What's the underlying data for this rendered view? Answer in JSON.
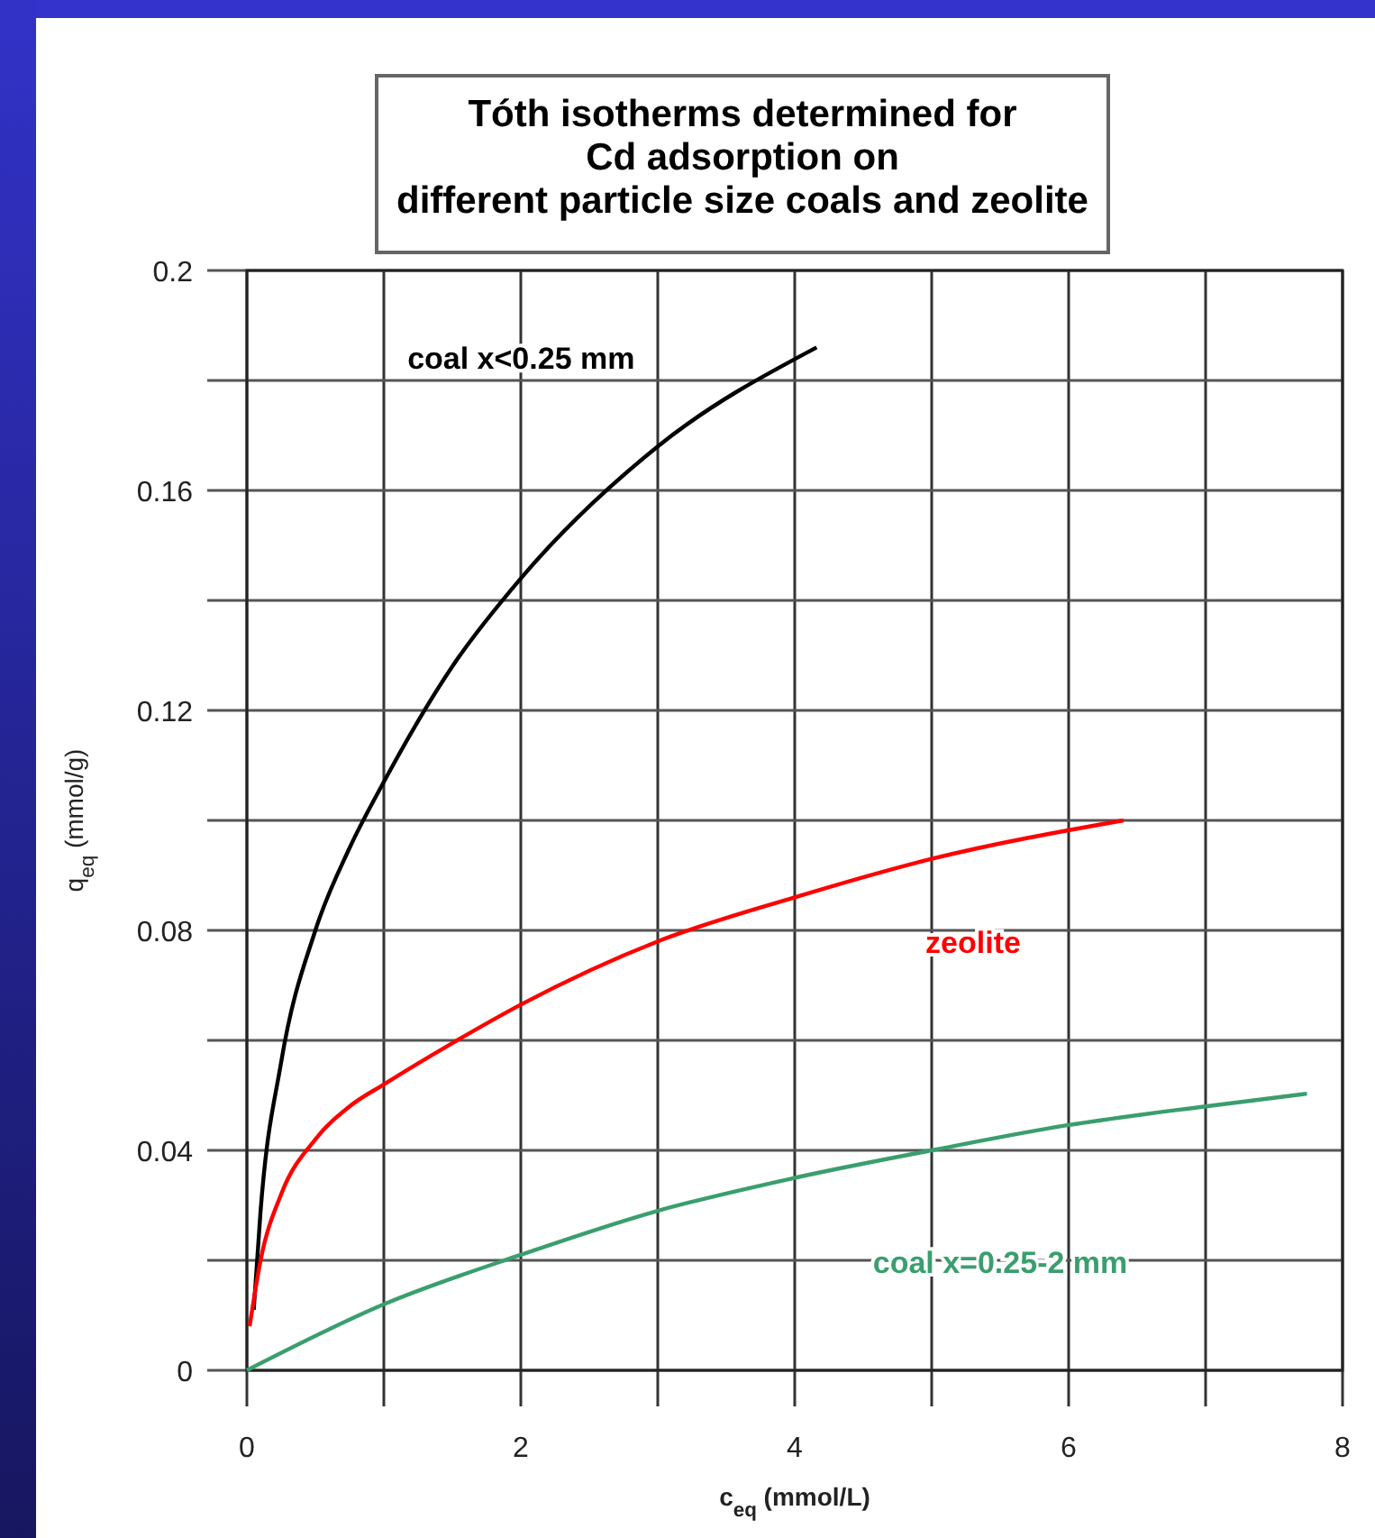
{
  "chart_data": {
    "type": "line",
    "title": "Tóth isotherms determined for\nCd adsorption on\ndifferent particle size coals and zeolite",
    "xlabel": "c$_{eq}$ (mmol/L)",
    "ylabel": "q$_{eq}$ (mmol/g)",
    "xlim": [
      0,
      8
    ],
    "ylim": [
      0,
      0.2
    ],
    "xticks": [
      0,
      {
        "value": 1,
        "label": null
      },
      2,
      {
        "value": 3,
        "label": null
      },
      4,
      {
        "value": 5,
        "label": null
      },
      6,
      {
        "value": 7,
        "label": null
      },
      8
    ],
    "yticks": [
      0,
      {
        "value": 0.02,
        "label": null
      },
      0.04,
      {
        "value": 0.06,
        "label": null
      },
      0.08,
      {
        "value": 0.1,
        "label": null
      },
      0.12,
      {
        "value": 0.14,
        "label": null
      },
      0.16,
      {
        "value": 0.18,
        "label": null
      },
      0.2
    ],
    "grid": true,
    "marker": "none",
    "line_style": "solid",
    "series": [
      {
        "name": "coal x<0.25 mm",
        "color": "#000000",
        "x": [
          0.05,
          0.1,
          0.25,
          0.5,
          0.75,
          1,
          1.5,
          2,
          3,
          4.16
        ],
        "values": [
          0.011,
          0.029,
          0.056,
          0.08,
          0.095,
          0.107,
          0.128,
          0.144,
          0.168,
          0.186
        ]
      },
      {
        "name": "zeolite",
        "color": "#ff0000",
        "x": [
          0.02,
          0.1,
          0.25,
          0.5,
          0.75,
          1,
          1.5,
          2,
          3,
          4,
          5,
          6.4
        ],
        "values": [
          0.008,
          0.02,
          0.032,
          0.042,
          0.048,
          0.052,
          0.0595,
          0.0665,
          0.078,
          0.086,
          0.093,
          0.1
        ]
      },
      {
        "name": "coal x=0.25-2 mm",
        "color": "#3a9e6e",
        "x": [
          0,
          1,
          2,
          3,
          4,
          5,
          6,
          7,
          7.74
        ],
        "values": [
          0,
          0.012,
          0.021,
          0.029,
          0.035,
          0.04,
          0.0446,
          0.048,
          0.0503
        ]
      }
    ]
  }
}
